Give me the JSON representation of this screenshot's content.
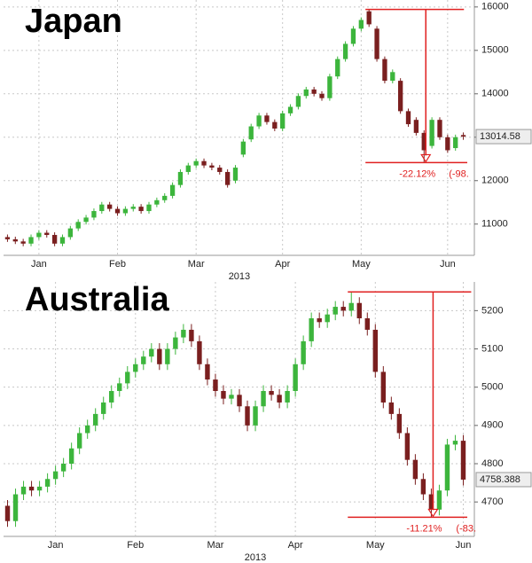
{
  "chart_data": [
    {
      "type": "candlestick",
      "title": "Japan",
      "x_label": "2013",
      "categories": [
        null,
        null,
        null,
        null,
        "Jan",
        null,
        null,
        null,
        null,
        null,
        null,
        null,
        null,
        null,
        "Feb",
        null,
        null,
        null,
        null,
        null,
        null,
        null,
        null,
        null,
        "Mar",
        null,
        null,
        null,
        null,
        null,
        null,
        null,
        null,
        null,
        null,
        "Apr",
        null,
        null,
        null,
        null,
        null,
        null,
        null,
        null,
        null,
        "May",
        null,
        null,
        null,
        null,
        null,
        null,
        null,
        null,
        null,
        null,
        "Jun",
        null,
        null
      ],
      "open": [
        10700,
        10650,
        10600,
        10550,
        10700,
        10800,
        10750,
        10550,
        10700,
        10900,
        11050,
        11150,
        11300,
        11450,
        11350,
        11250,
        11350,
        11400,
        11300,
        11450,
        11550,
        11650,
        11900,
        12200,
        12350,
        12450,
        12350,
        12300,
        12200,
        12000,
        12600,
        12950,
        13250,
        13500,
        13350,
        13200,
        13550,
        13700,
        13950,
        14100,
        14000,
        13900,
        14400,
        14800,
        15150,
        15500,
        15900,
        15500,
        14800,
        14300,
        14300,
        13600,
        13400,
        13100,
        12800,
        13400,
        13000,
        12750,
        13050
      ],
      "high": [
        10760,
        10710,
        10660,
        10760,
        10860,
        10860,
        10810,
        10760,
        10960,
        11110,
        11210,
        11360,
        11510,
        11510,
        11410,
        11410,
        11460,
        11460,
        11510,
        11610,
        11710,
        11960,
        12260,
        12410,
        12510,
        12510,
        12410,
        12360,
        12260,
        12360,
        12960,
        13310,
        13560,
        13560,
        13410,
        13610,
        13760,
        14010,
        14160,
        14160,
        14060,
        14460,
        14860,
        15210,
        15560,
        15760,
        15942,
        15560,
        14860,
        14560,
        14360,
        13660,
        13460,
        13160,
        13460,
        13460,
        13060,
        13060,
        13110
      ],
      "low": [
        10590,
        10540,
        10490,
        10490,
        10640,
        10690,
        10490,
        10490,
        10640,
        10840,
        10990,
        11090,
        11240,
        11290,
        11190,
        11190,
        11290,
        11240,
        11240,
        11390,
        11490,
        11590,
        11840,
        12140,
        12290,
        12290,
        12240,
        12140,
        11840,
        11940,
        12540,
        12890,
        13190,
        13290,
        13140,
        13140,
        13490,
        13640,
        13890,
        13940,
        13840,
        13840,
        14340,
        14740,
        15090,
        15440,
        15540,
        14740,
        14240,
        14240,
        13540,
        13240,
        13040,
        12415,
        12740,
        12940,
        12640,
        12690,
        12940
      ],
      "close": [
        10650,
        10600,
        10550,
        10700,
        10800,
        10750,
        10550,
        10700,
        10900,
        11050,
        11150,
        11300,
        11450,
        11350,
        11250,
        11350,
        11400,
        11300,
        11450,
        11550,
        11650,
        11900,
        12200,
        12350,
        12450,
        12350,
        12300,
        12200,
        11900,
        12300,
        12900,
        13250,
        13500,
        13350,
        13200,
        13550,
        13700,
        13950,
        14100,
        14000,
        13900,
        14400,
        14800,
        15150,
        15500,
        15700,
        15600,
        14800,
        14300,
        14500,
        13600,
        13300,
        13100,
        12700,
        13400,
        13000,
        12700,
        13000,
        13014.58
      ],
      "up_color": "#3cb53c",
      "down_color": "#7a1f1f",
      "ylim": [
        10280,
        16160
      ],
      "yticks": [
        11000,
        12000,
        13000,
        14000,
        15000,
        16000
      ],
      "grid": true,
      "drawdown": {
        "peak": 15942,
        "trough": 12415,
        "label": "-22.12%",
        "detail": "(-98.",
        "color": "#e02020"
      }
    },
    {
      "type": "candlestick",
      "title": "Australia",
      "x_label": "2013",
      "categories": [
        null,
        null,
        null,
        null,
        null,
        null,
        "Jan",
        null,
        null,
        null,
        null,
        null,
        null,
        null,
        null,
        null,
        "Feb",
        null,
        null,
        null,
        null,
        null,
        null,
        null,
        null,
        null,
        "Mar",
        null,
        null,
        null,
        null,
        null,
        null,
        null,
        null,
        null,
        "Apr",
        null,
        null,
        null,
        null,
        null,
        null,
        null,
        null,
        null,
        "May",
        null,
        null,
        null,
        null,
        null,
        null,
        null,
        null,
        null,
        null,
        "Jun"
      ],
      "open": [
        4690,
        4650,
        4720,
        4740,
        4730,
        4740,
        4760,
        4780,
        4800,
        4840,
        4880,
        4900,
        4930,
        4960,
        4990,
        5010,
        5040,
        5060,
        5080,
        5100,
        5060,
        5100,
        5130,
        5150,
        5120,
        5060,
        5020,
        4990,
        4970,
        4980,
        4950,
        4900,
        4950,
        4990,
        4980,
        4960,
        4990,
        5060,
        5120,
        5180,
        5170,
        5190,
        5210,
        5200,
        5220,
        5180,
        5150,
        5040,
        4960,
        4930,
        4880,
        4810,
        4760,
        4720,
        4680,
        4730,
        4850,
        4860
      ],
      "high": [
        4705,
        4735,
        4755,
        4755,
        4755,
        4775,
        4795,
        4815,
        4855,
        4895,
        4915,
        4945,
        4975,
        5005,
        5025,
        5055,
        5075,
        5095,
        5115,
        5115,
        5115,
        5145,
        5165,
        5165,
        5135,
        5075,
        5035,
        5005,
        4995,
        4995,
        4965,
        4965,
        5005,
        5005,
        4995,
        5005,
        5075,
        5135,
        5195,
        5195,
        5205,
        5225,
        5225,
        5249,
        5235,
        5195,
        5165,
        5055,
        4975,
        4945,
        4895,
        4825,
        4775,
        4735,
        4745,
        4865,
        4875,
        4875
      ],
      "low": [
        4635,
        4635,
        4705,
        4715,
        4715,
        4725,
        4745,
        4765,
        4785,
        4825,
        4865,
        4885,
        4915,
        4945,
        4975,
        4995,
        5025,
        5045,
        5065,
        5045,
        5045,
        5085,
        5115,
        5105,
        5045,
        5005,
        4975,
        4955,
        4955,
        4935,
        4885,
        4885,
        4935,
        4965,
        4945,
        4945,
        4975,
        5045,
        5105,
        5155,
        5155,
        5175,
        5185,
        5185,
        5165,
        5135,
        5025,
        4945,
        4915,
        4865,
        4795,
        4745,
        4705,
        4660,
        4665,
        4715,
        4835,
        4743
      ],
      "close": [
        4650,
        4720,
        4740,
        4730,
        4740,
        4760,
        4780,
        4800,
        4840,
        4880,
        4900,
        4930,
        4960,
        4990,
        5010,
        5040,
        5060,
        5080,
        5100,
        5060,
        5100,
        5130,
        5150,
        5120,
        5060,
        5020,
        4990,
        4970,
        4980,
        4950,
        4900,
        4950,
        4990,
        4980,
        4960,
        4990,
        5060,
        5120,
        5180,
        5170,
        5190,
        5210,
        5200,
        5220,
        5180,
        5150,
        5040,
        4960,
        4930,
        4880,
        4810,
        4760,
        4720,
        4680,
        4730,
        4850,
        4860,
        4758.388
      ],
      "up_color": "#3cb53c",
      "down_color": "#7a1f1f",
      "ylim": [
        4610,
        5275
      ],
      "yticks": [
        4700,
        4800,
        4900,
        5000,
        5100,
        5200
      ],
      "grid": true,
      "drawdown": {
        "peak": 5249,
        "trough": 4660,
        "label": "-11.21%",
        "detail": "(-83.",
        "color": "#e02020"
      }
    }
  ]
}
